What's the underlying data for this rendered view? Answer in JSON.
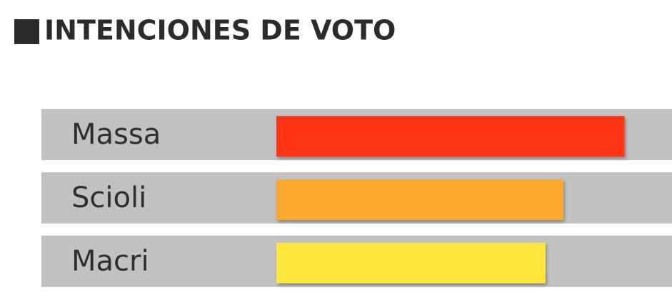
{
  "chart_data": {
    "type": "hbar",
    "title": "INTENCIONES DE VOTO",
    "categories": [
      "Massa",
      "Scioli",
      "Macri"
    ],
    "values": [
      88,
      72.5,
      68
    ],
    "colors": [
      "#ff3419",
      "#fda82f",
      "#ffe63c"
    ],
    "xlim": [
      0,
      100
    ]
  }
}
